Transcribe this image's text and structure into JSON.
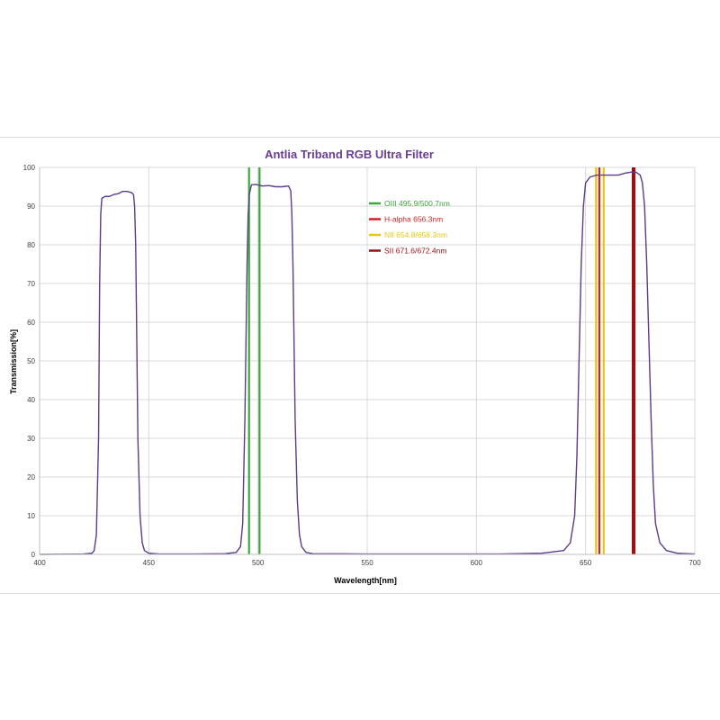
{
  "chart_data": {
    "type": "line",
    "title": "Antlia Triband RGB Ultra Filter",
    "xlabel": "Wavelength[nm]",
    "ylabel": "Transmission[%]",
    "xlim": [
      400,
      700
    ],
    "ylim": [
      0,
      100
    ],
    "x_ticks": [
      "400",
      "450",
      "500",
      "550",
      "600",
      "650",
      "700"
    ],
    "y_ticks": [
      "0",
      "10",
      "20",
      "30",
      "40",
      "50",
      "60",
      "70",
      "80",
      "90",
      "100"
    ],
    "grid": true,
    "legend_position": "upper-center",
    "series": [
      {
        "color": "#5b3c8c",
        "points": [
          [
            400,
            0
          ],
          [
            420,
            0.1
          ],
          [
            424,
            0.3
          ],
          [
            425,
            1
          ],
          [
            426,
            5
          ],
          [
            427,
            30
          ],
          [
            427.5,
            70
          ],
          [
            428,
            88
          ],
          [
            428.5,
            92
          ],
          [
            430,
            92.5
          ],
          [
            432,
            92.5
          ],
          [
            434,
            93
          ],
          [
            436,
            93.2
          ],
          [
            438,
            93.8
          ],
          [
            440,
            93.8
          ],
          [
            442,
            93.5
          ],
          [
            443,
            93
          ],
          [
            443.5,
            90
          ],
          [
            444,
            80
          ],
          [
            444.5,
            55
          ],
          [
            445,
            30
          ],
          [
            446,
            10
          ],
          [
            447,
            3
          ],
          [
            448,
            1
          ],
          [
            450,
            0.3
          ],
          [
            455,
            0.1
          ],
          [
            470,
            0.1
          ],
          [
            485,
            0.2
          ],
          [
            490,
            0.5
          ],
          [
            492,
            2
          ],
          [
            493,
            8
          ],
          [
            494,
            35
          ],
          [
            495,
            75
          ],
          [
            495.5,
            88
          ],
          [
            496,
            93
          ],
          [
            497,
            95.5
          ],
          [
            499,
            95.6
          ],
          [
            502,
            95.2
          ],
          [
            505,
            95.3
          ],
          [
            508,
            95
          ],
          [
            511,
            95
          ],
          [
            514,
            95.2
          ],
          [
            515,
            94
          ],
          [
            515.5,
            88
          ],
          [
            516,
            75
          ],
          [
            516.5,
            55
          ],
          [
            517,
            35
          ],
          [
            518,
            14
          ],
          [
            519,
            5
          ],
          [
            520,
            2
          ],
          [
            522,
            0.5
          ],
          [
            525,
            0.2
          ],
          [
            550,
            0.1
          ],
          [
            570,
            0.1
          ],
          [
            590,
            0.1
          ],
          [
            610,
            0.1
          ],
          [
            630,
            0.3
          ],
          [
            640,
            1
          ],
          [
            643,
            3
          ],
          [
            645,
            10
          ],
          [
            646,
            25
          ],
          [
            647,
            50
          ],
          [
            648,
            75
          ],
          [
            649,
            90
          ],
          [
            650,
            96
          ],
          [
            652,
            97.5
          ],
          [
            655,
            98
          ],
          [
            658,
            98
          ],
          [
            661,
            98
          ],
          [
            665,
            98
          ],
          [
            668,
            98.5
          ],
          [
            671,
            98.8
          ],
          [
            673,
            98.8
          ],
          [
            675,
            98
          ],
          [
            676,
            96
          ],
          [
            677,
            90
          ],
          [
            678,
            75
          ],
          [
            679,
            55
          ],
          [
            680,
            35
          ],
          [
            681,
            18
          ],
          [
            682,
            8
          ],
          [
            684,
            3
          ],
          [
            687,
            1
          ],
          [
            692,
            0.3
          ],
          [
            700,
            0.1
          ]
        ]
      }
    ],
    "reference_lines": [
      {
        "label": "OIII 495.9/500.7nm",
        "color": "#3aa83a",
        "x": [
          495.9,
          500.7
        ]
      },
      {
        "label": "H-alpha 656.3nm",
        "color": "#d42020",
        "x": [
          656.3
        ]
      },
      {
        "label": "NII 654.8/658.3nm",
        "color": "#e6c619",
        "x": [
          654.8,
          658.3
        ]
      },
      {
        "label": "SII 671.6/672.4nm",
        "color": "#9b1010",
        "x": [
          671.6,
          672.4
        ]
      }
    ]
  }
}
